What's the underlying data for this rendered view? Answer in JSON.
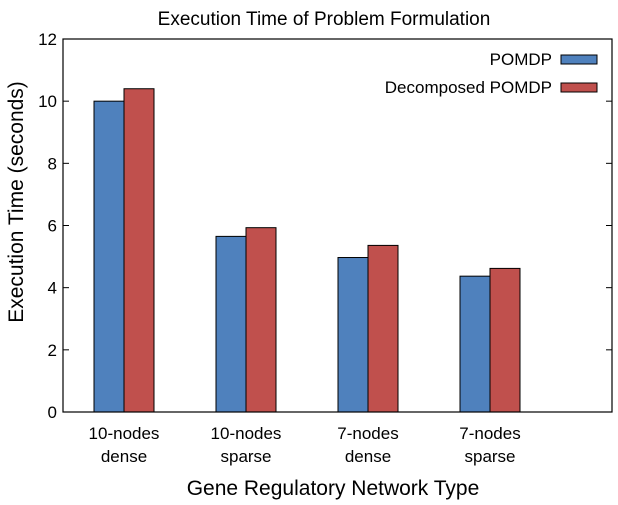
{
  "chart_data": {
    "type": "bar",
    "title": "Execution Time of Problem Formulation",
    "xlabel": "Gene Regulatory Network Type",
    "ylabel": "Execution Time (seconds)",
    "categories": [
      [
        "10-nodes",
        "dense"
      ],
      [
        "10-nodes",
        "sparse"
      ],
      [
        "7-nodes",
        "dense"
      ],
      [
        "7-nodes",
        "sparse"
      ]
    ],
    "series": [
      {
        "name": "POMDP",
        "color": "#4f81bd",
        "values": [
          10.0,
          5.65,
          4.97,
          4.37
        ]
      },
      {
        "name": "Decomposed POMDP",
        "color": "#c0504d",
        "values": [
          10.4,
          5.93,
          5.36,
          4.62
        ]
      }
    ],
    "ylim": [
      0,
      12
    ],
    "yticks": [
      0,
      2,
      4,
      6,
      8,
      10,
      12
    ],
    "grid": false,
    "legend_position": "top-right"
  }
}
